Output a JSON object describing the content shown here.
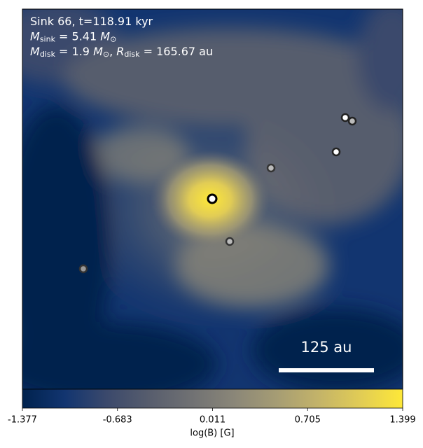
{
  "chart_data": {
    "type": "image",
    "annotations": [
      [
        {
          "text": "Sink 66, t=118.91 kyr"
        }
      ],
      [
        {
          "text": "M",
          "italic": true
        },
        {
          "text": "sink",
          "sub": true
        },
        {
          "text": " = 5.41 "
        },
        {
          "text": "M",
          "italic": true
        },
        {
          "text": "⊙",
          "sub": true
        }
      ],
      [
        {
          "text": "M",
          "italic": true
        },
        {
          "text": "disk",
          "sub": true
        },
        {
          "text": " = 1.9 "
        },
        {
          "text": "M",
          "italic": true
        },
        {
          "text": "⊙",
          "sub": true
        },
        {
          "text": ", "
        },
        {
          "text": "R",
          "italic": true
        },
        {
          "text": "disk",
          "sub": true
        },
        {
          "text": " = 165.67 au"
        }
      ]
    ],
    "scale_bar_label": "125 au",
    "colorbar": {
      "label": "log(B) [G]",
      "lim": [
        -1.377,
        1.399
      ],
      "ticks": [
        -1.377,
        -0.683,
        0.011,
        0.705,
        1.399
      ],
      "colors": [
        "#00224e",
        "#123570",
        "#3b496c",
        "#575d6d",
        "#707173",
        "#8a8678",
        "#a59c74",
        "#c3b369",
        "#e1cc55",
        "#fee838"
      ]
    }
  }
}
